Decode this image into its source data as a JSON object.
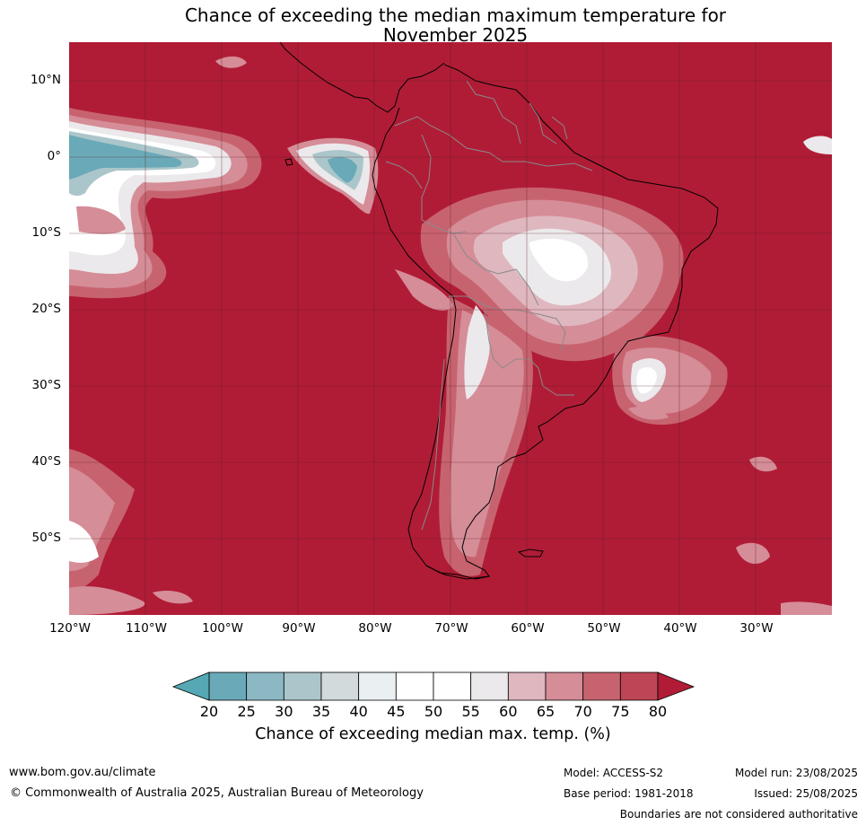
{
  "title": {
    "line1": "Chance of exceeding the median maximum temperature for",
    "line2": "November 2025"
  },
  "map": {
    "latitude_labels": [
      "10°N",
      "0°",
      "10°S",
      "20°S",
      "30°S",
      "40°S",
      "50°S"
    ],
    "longitude_labels": [
      "120°W",
      "110°W",
      "100°W",
      "90°W",
      "80°W",
      "70°W",
      "60°W",
      "50°W",
      "40°W",
      "30°W"
    ],
    "colors": {
      "background_fill": "#b01c36",
      "gridline": "#5a1a22",
      "coastline": "#000000",
      "borders": "#8a8a8a"
    },
    "regions": [
      "equatorial Pacific west of 100°W: 20–55% band",
      "Galapagos / Ecuador coast: 20–35% band",
      "central Brazil / Bolivia: 45–75% band",
      "Andes and Patagonia: 60–75% band",
      "South Atlantic off Brazil: 50–75% band"
    ]
  },
  "legend": {
    "ticks": [
      "20",
      "25",
      "30",
      "35",
      "40",
      "45",
      "50",
      "55",
      "60",
      "65",
      "70",
      "75",
      "80"
    ],
    "colors": [
      "#6aaab8",
      "#8cb8c4",
      "#abc6ca",
      "#d2dadb",
      "#eaf0f2",
      "#ffffff",
      "#ffffff",
      "#ebe9eb",
      "#dfb7bf",
      "#d58d98",
      "#c7636f",
      "#bd4556"
    ],
    "under_color": "#55a8b4",
    "over_color": "#b01c36",
    "label": "Chance of exceeding median max. temp. (%)"
  },
  "footer": {
    "website": "www.bom.gov.au/climate",
    "copyright": "© Commonwealth of Australia 2025, Australian Bureau of Meteorology",
    "model": "Model: ACCESS-S2",
    "base_period": "Base period: 1981-2018",
    "model_run": "Model run: 23/08/2025",
    "issued": "Issued: 25/08/2025",
    "disclaimer": "Boundaries are not considered authoritative"
  }
}
